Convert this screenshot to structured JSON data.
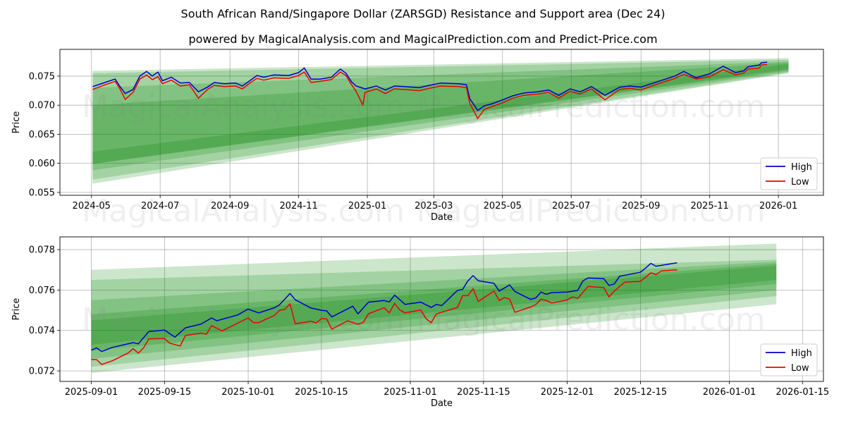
{
  "title": "South African Rand/Singapore Dollar (ZARSGD) Resistance and Support area (Dec 24)",
  "subtitle": "powered by MagicalAnalysis.com and MagicalPrediction.com and Predict-Price.com",
  "watermarks": [
    "MagicalAnalysis.com",
    "MagicalPrediction.com"
  ],
  "colors": {
    "high": "#0000cc",
    "low": "#ee0000",
    "band": "#008000"
  },
  "chart_data": [
    {
      "type": "line",
      "xlabel": "Date",
      "ylabel": "Price",
      "xlim": [
        "2024-04-03",
        "2026-02-10"
      ],
      "ylim": [
        0.0545,
        0.0796
      ],
      "grid": true,
      "legend": "bottom-right",
      "yticks": [
        0.055,
        0.06,
        0.065,
        0.07,
        0.075
      ],
      "ytick_labels": [
        "0.055",
        "0.060",
        "0.065",
        "0.070",
        "0.075"
      ],
      "xticks": [
        "2024-05-01",
        "2024-07-01",
        "2024-09-01",
        "2024-11-01",
        "2025-01-01",
        "2025-03-01",
        "2025-05-01",
        "2025-07-01",
        "2025-09-01",
        "2025-11-01",
        "2026-01-01"
      ],
      "xtick_labels": [
        "2024-05",
        "2024-07",
        "2024-09",
        "2024-11",
        "2025-01",
        "2025-03",
        "2025-05",
        "2025-07",
        "2025-09",
        "2025-11",
        "2026-01"
      ],
      "bands": {
        "start": "2024-05-02",
        "end": "2026-01-10",
        "levels": [
          {
            "start_low": 0.0565,
            "start_high": 0.0759,
            "end_low": 0.0755,
            "end_high": 0.0781
          },
          {
            "start_low": 0.0572,
            "start_high": 0.0755,
            "end_low": 0.0756,
            "end_high": 0.0778
          },
          {
            "start_low": 0.0588,
            "start_high": 0.073,
            "end_low": 0.0758,
            "end_high": 0.0775
          },
          {
            "start_low": 0.0599,
            "start_high": 0.07,
            "end_low": 0.076,
            "end_high": 0.0773
          },
          {
            "start_low": 0.0599,
            "start_high": 0.062,
            "end_low": 0.0762,
            "end_high": 0.0771
          }
        ]
      },
      "series": [
        {
          "name": "High",
          "dates": [
            "2024-05-02",
            "2024-05-13",
            "2024-05-22",
            "2024-05-26",
            "2024-05-31",
            "2024-06-07",
            "2024-06-13",
            "2024-06-19",
            "2024-06-24",
            "2024-06-29",
            "2024-07-03",
            "2024-07-11",
            "2024-07-19",
            "2024-07-27",
            "2024-08-04",
            "2024-08-12",
            "2024-08-18",
            "2024-08-27",
            "2024-09-06",
            "2024-09-12",
            "2024-09-20",
            "2024-09-25",
            "2024-10-01",
            "2024-10-10",
            "2024-10-23",
            "2024-11-01",
            "2024-11-06",
            "2024-11-12",
            "2024-11-20",
            "2024-11-30",
            "2024-12-08",
            "2024-12-13",
            "2024-12-18",
            "2024-12-22",
            "2024-12-30",
            "2025-01-09",
            "2025-01-17",
            "2025-01-25",
            "2025-02-03",
            "2025-02-16",
            "2025-02-25",
            "2025-03-07",
            "2025-03-23",
            "2025-03-30",
            "2025-04-02",
            "2025-04-09",
            "2025-04-15",
            "2025-04-21",
            "2025-05-01",
            "2025-05-10",
            "2025-05-20",
            "2025-06-01",
            "2025-06-11",
            "2025-06-20",
            "2025-06-30",
            "2025-07-09",
            "2025-07-19",
            "2025-07-31",
            "2025-08-13",
            "2025-08-22",
            "2025-09-01",
            "2025-09-15",
            "2025-10-01",
            "2025-10-09",
            "2025-10-20",
            "2025-11-01",
            "2025-11-13",
            "2025-11-24",
            "2025-12-01",
            "2025-12-05",
            "2025-12-15",
            "2025-12-17",
            "2025-12-22"
          ],
          "values": [
            0.0732,
            0.0739,
            0.0745,
            0.0733,
            0.072,
            0.0727,
            0.075,
            0.0758,
            0.075,
            0.0757,
            0.0742,
            0.0748,
            0.0738,
            0.0739,
            0.0723,
            0.0731,
            0.0739,
            0.0737,
            0.0738,
            0.0733,
            0.0744,
            0.0751,
            0.0748,
            0.0752,
            0.0751,
            0.0756,
            0.0764,
            0.0745,
            0.0745,
            0.0748,
            0.0762,
            0.0755,
            0.074,
            0.0733,
            0.0728,
            0.0733,
            0.0726,
            0.0733,
            0.0732,
            0.073,
            0.0734,
            0.0738,
            0.0737,
            0.0735,
            0.0711,
            0.0691,
            0.0699,
            0.0702,
            0.0709,
            0.0716,
            0.0721,
            0.0723,
            0.0726,
            0.0717,
            0.0728,
            0.0723,
            0.0732,
            0.0717,
            0.0731,
            0.0733,
            0.0731,
            0.074,
            0.075,
            0.0758,
            0.0747,
            0.0754,
            0.0767,
            0.0756,
            0.0759,
            0.0766,
            0.0769,
            0.0773,
            0.0774
          ]
        },
        {
          "name": "Low",
          "dates": [
            "2024-05-02",
            "2024-05-13",
            "2024-05-22",
            "2024-05-26",
            "2024-05-31",
            "2024-06-07",
            "2024-06-13",
            "2024-06-19",
            "2024-06-24",
            "2024-06-29",
            "2024-07-03",
            "2024-07-11",
            "2024-07-19",
            "2024-07-27",
            "2024-08-04",
            "2024-08-12",
            "2024-08-18",
            "2024-08-27",
            "2024-09-06",
            "2024-09-12",
            "2024-09-20",
            "2024-09-25",
            "2024-10-01",
            "2024-10-10",
            "2024-10-23",
            "2024-11-01",
            "2024-11-06",
            "2024-11-12",
            "2024-11-20",
            "2024-11-30",
            "2024-12-08",
            "2024-12-13",
            "2024-12-18",
            "2024-12-22",
            "2024-12-28",
            "2024-12-30",
            "2025-01-09",
            "2025-01-17",
            "2025-01-25",
            "2025-02-03",
            "2025-02-16",
            "2025-02-25",
            "2025-03-07",
            "2025-03-23",
            "2025-03-30",
            "2025-04-02",
            "2025-04-09",
            "2025-04-15",
            "2025-04-21",
            "2025-05-01",
            "2025-05-10",
            "2025-05-20",
            "2025-06-01",
            "2025-06-11",
            "2025-06-20",
            "2025-06-30",
            "2025-07-09",
            "2025-07-19",
            "2025-07-31",
            "2025-08-13",
            "2025-08-22",
            "2025-09-01",
            "2025-09-15",
            "2025-10-01",
            "2025-10-09",
            "2025-10-20",
            "2025-11-01",
            "2025-11-13",
            "2025-11-24",
            "2025-12-01",
            "2025-12-05",
            "2025-12-15",
            "2025-12-17",
            "2025-12-22"
          ],
          "values": [
            0.0727,
            0.0735,
            0.0741,
            0.0729,
            0.071,
            0.0722,
            0.0745,
            0.0752,
            0.0744,
            0.0749,
            0.0737,
            0.0743,
            0.0733,
            0.0735,
            0.0712,
            0.0727,
            0.0734,
            0.0732,
            0.0733,
            0.0728,
            0.074,
            0.0746,
            0.0743,
            0.0747,
            0.0746,
            0.0751,
            0.0757,
            0.0739,
            0.0741,
            0.0744,
            0.0757,
            0.0751,
            0.0735,
            0.0724,
            0.07,
            0.0722,
            0.0728,
            0.072,
            0.0728,
            0.0727,
            0.0725,
            0.0729,
            0.0733,
            0.0732,
            0.073,
            0.0703,
            0.0677,
            0.0693,
            0.0697,
            0.0704,
            0.0712,
            0.0717,
            0.0719,
            0.0722,
            0.0712,
            0.0724,
            0.0719,
            0.0728,
            0.0709,
            0.0727,
            0.0729,
            0.0726,
            0.0736,
            0.0746,
            0.0753,
            0.0745,
            0.0749,
            0.0761,
            0.0752,
            0.0755,
            0.0762,
            0.0764,
            0.0769,
            0.077
          ]
        }
      ]
    },
    {
      "type": "line",
      "xlabel": "Date",
      "ylabel": "Price",
      "xlim": [
        "2025-08-26",
        "2026-01-19"
      ],
      "ylim": [
        0.07148,
        0.07863
      ],
      "grid": true,
      "legend": "bottom-right",
      "yticks": [
        0.072,
        0.074,
        0.076,
        0.078
      ],
      "ytick_labels": [
        "0.072",
        "0.074",
        "0.076",
        "0.078"
      ],
      "xticks": [
        "2025-09-01",
        "2025-09-15",
        "2025-10-01",
        "2025-10-15",
        "2025-11-01",
        "2025-11-15",
        "2025-12-01",
        "2025-12-15",
        "2026-01-01",
        "2026-01-15"
      ],
      "xtick_labels": [
        "2025-09-01",
        "2025-09-15",
        "2025-10-01",
        "2025-10-15",
        "2025-11-01",
        "2025-11-15",
        "2025-12-01",
        "2025-12-15",
        "2026-01-01",
        "2026-01-15"
      ],
      "bands": {
        "start": "2025-09-01",
        "end": "2026-01-10",
        "levels": [
          {
            "start_low": 0.0719,
            "start_high": 0.077,
            "end_low": 0.0753,
            "end_high": 0.0783
          },
          {
            "start_low": 0.0722,
            "start_high": 0.0765,
            "end_low": 0.0757,
            "end_high": 0.0775
          },
          {
            "start_low": 0.0726,
            "start_high": 0.0755,
            "end_low": 0.076,
            "end_high": 0.0774
          },
          {
            "start_low": 0.073,
            "start_high": 0.0748,
            "end_low": 0.0763,
            "end_high": 0.0773
          },
          {
            "start_low": 0.0733,
            "start_high": 0.0745,
            "end_low": 0.0765,
            "end_high": 0.0772
          }
        ]
      },
      "series": [
        {
          "name": "High",
          "dates": [
            "2025-09-01",
            "2025-09-02",
            "2025-09-03",
            "2025-09-05",
            "2025-09-09",
            "2025-09-10",
            "2025-09-12",
            "2025-09-15",
            "2025-09-17",
            "2025-09-19",
            "2025-09-22",
            "2025-09-24",
            "2025-09-25",
            "2025-09-29",
            "2025-10-01",
            "2025-10-03",
            "2025-10-06",
            "2025-10-07",
            "2025-10-09",
            "2025-10-10",
            "2025-10-13",
            "2025-10-15",
            "2025-10-16",
            "2025-10-17",
            "2025-10-21",
            "2025-10-22",
            "2025-10-24",
            "2025-10-27",
            "2025-10-28",
            "2025-10-29",
            "2025-10-31",
            "2025-11-03",
            "2025-11-05",
            "2025-11-06",
            "2025-11-07",
            "2025-11-10",
            "2025-11-11",
            "2025-11-12",
            "2025-11-13",
            "2025-11-14",
            "2025-11-17",
            "2025-11-18",
            "2025-11-20",
            "2025-11-21",
            "2025-11-24",
            "2025-11-25",
            "2025-11-26",
            "2025-11-27",
            "2025-11-28",
            "2025-12-01",
            "2025-12-03",
            "2025-12-04",
            "2025-12-05",
            "2025-12-08",
            "2025-12-09",
            "2025-12-10",
            "2025-12-11",
            "2025-12-15",
            "2025-12-16",
            "2025-12-17",
            "2025-12-18",
            "2025-12-22"
          ],
          "values": [
            0.07302,
            0.07314,
            0.07296,
            0.07316,
            0.0734,
            0.07334,
            0.07395,
            0.07402,
            0.07367,
            0.07413,
            0.07432,
            0.07462,
            0.07448,
            0.07477,
            0.07506,
            0.07487,
            0.07512,
            0.07527,
            0.07583,
            0.07552,
            0.07511,
            0.075,
            0.07497,
            0.07467,
            0.0752,
            0.07482,
            0.0754,
            0.07548,
            0.07541,
            0.07575,
            0.07529,
            0.0754,
            0.07514,
            0.07529,
            0.07523,
            0.07598,
            0.07603,
            0.07645,
            0.07671,
            0.07646,
            0.07633,
            0.07595,
            0.07625,
            0.07593,
            0.07554,
            0.07561,
            0.0759,
            0.07579,
            0.07587,
            0.0759,
            0.07598,
            0.07645,
            0.0766,
            0.07656,
            0.07623,
            0.0763,
            0.07668,
            0.07688,
            0.07709,
            0.07732,
            0.07718,
            0.07735
          ]
        },
        {
          "name": "Low",
          "dates": [
            "2025-09-01",
            "2025-09-02",
            "2025-09-03",
            "2025-09-05",
            "2025-09-08",
            "2025-09-09",
            "2025-09-10",
            "2025-09-11",
            "2025-09-12",
            "2025-09-15",
            "2025-09-16",
            "2025-09-18",
            "2025-09-19",
            "2025-09-22",
            "2025-09-23",
            "2025-09-24",
            "2025-09-26",
            "2025-10-01",
            "2025-10-02",
            "2025-10-03",
            "2025-10-06",
            "2025-10-07",
            "2025-10-08",
            "2025-10-09",
            "2025-10-10",
            "2025-10-13",
            "2025-10-14",
            "2025-10-15",
            "2025-10-16",
            "2025-10-17",
            "2025-10-20",
            "2025-10-22",
            "2025-10-23",
            "2025-10-24",
            "2025-10-27",
            "2025-10-28",
            "2025-10-29",
            "2025-10-30",
            "2025-10-31",
            "2025-11-03",
            "2025-11-04",
            "2025-11-05",
            "2025-11-06",
            "2025-11-10",
            "2025-11-11",
            "2025-11-12",
            "2025-11-13",
            "2025-11-14",
            "2025-11-17",
            "2025-11-18",
            "2025-11-19",
            "2025-11-20",
            "2025-11-21",
            "2025-11-24",
            "2025-11-25",
            "2025-11-26",
            "2025-11-27",
            "2025-11-28",
            "2025-12-01",
            "2025-12-02",
            "2025-12-03",
            "2025-12-05",
            "2025-12-08",
            "2025-12-09",
            "2025-12-10",
            "2025-12-12",
            "2025-12-15",
            "2025-12-17",
            "2025-12-18",
            "2025-12-19",
            "2025-12-22"
          ],
          "values": [
            0.07256,
            0.07256,
            0.07232,
            0.0725,
            0.07288,
            0.0731,
            0.07288,
            0.07314,
            0.07358,
            0.0736,
            0.07337,
            0.07323,
            0.07375,
            0.07387,
            0.07381,
            0.07424,
            0.07398,
            0.07462,
            0.07439,
            0.07439,
            0.07474,
            0.075,
            0.07504,
            0.07532,
            0.07433,
            0.07446,
            0.07437,
            0.07459,
            0.07457,
            0.07406,
            0.07448,
            0.07431,
            0.0744,
            0.07483,
            0.07512,
            0.07487,
            0.07534,
            0.07501,
            0.07487,
            0.07501,
            0.07459,
            0.07439,
            0.07482,
            0.07514,
            0.07572,
            0.07572,
            0.07607,
            0.07543,
            0.07595,
            0.07548,
            0.07563,
            0.07555,
            0.0749,
            0.07516,
            0.07528,
            0.07555,
            0.07548,
            0.07536,
            0.07551,
            0.07566,
            0.07559,
            0.07618,
            0.07612,
            0.07566,
            0.07595,
            0.07639,
            0.07643,
            0.07685,
            0.07676,
            0.07695,
            0.077
          ]
        }
      ]
    }
  ]
}
